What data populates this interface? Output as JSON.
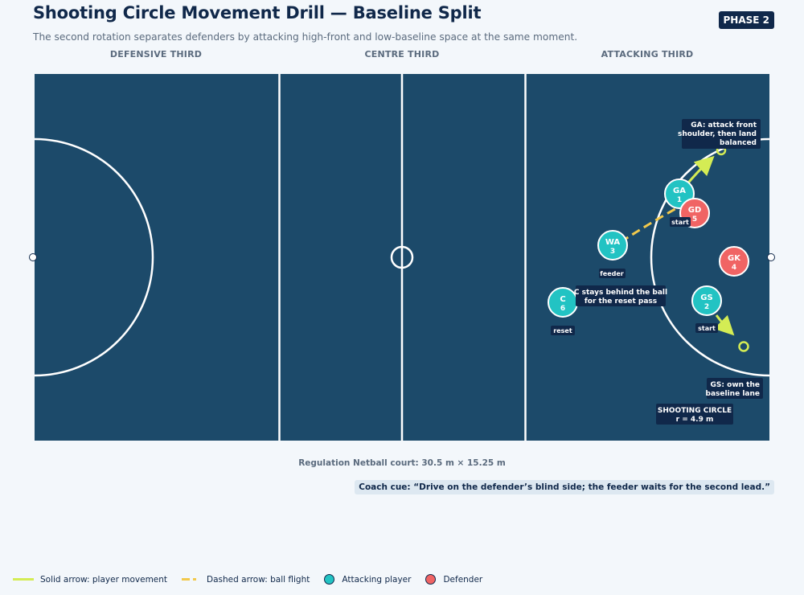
{
  "header": {
    "title": "Shooting Circle Movement Drill — Baseline Split",
    "subtitle": "The second rotation separates defenders by attacking high-front and low-baseline space at the same moment.",
    "phase_badge": "PHASE 2"
  },
  "zones": {
    "defensive": "DEFENSIVE THIRD",
    "centre": "CENTRE THIRD",
    "attacking": "ATTACKING THIRD"
  },
  "court": {
    "surface_color": "#1c4a6a",
    "line_color": "#ffffff",
    "circle_label": "SHOOTING CIRCLE",
    "circle_radius": "r = 4.9 m",
    "footnote": "Regulation Netball court: 30.5 m × 15.25 m"
  },
  "players": [
    {
      "pos": "GA",
      "num": "1",
      "team": "attack",
      "tag": "start"
    },
    {
      "pos": "GD",
      "num": "5",
      "team": "defence",
      "tag": ""
    },
    {
      "pos": "WA",
      "num": "3",
      "team": "attack",
      "tag": "feeder"
    },
    {
      "pos": "GK",
      "num": "4",
      "team": "defence",
      "tag": ""
    },
    {
      "pos": "C",
      "num": "6",
      "team": "attack",
      "tag": "reset"
    },
    {
      "pos": "GS",
      "num": "2",
      "team": "attack",
      "tag": "start"
    }
  ],
  "annotations": {
    "ga_note": [
      "GA: attack front",
      "shoulder, then land",
      "balanced"
    ],
    "c_note": [
      "C stays behind the ball",
      "for the reset pass"
    ],
    "gs_note": [
      "GS: own the",
      "baseline lane"
    ]
  },
  "coach_cue": "Coach cue: “Drive on the defender’s blind side; the feeder waits for the second lead.”",
  "legend": {
    "movement": "Solid arrow: player movement",
    "ball": "Dashed arrow: ball flight",
    "attack": "Attacking player",
    "defence": "Defender"
  },
  "colors": {
    "attack": "#22c3c3",
    "defence": "#f06464",
    "movement": "#d4ec54",
    "ball": "#f2c94c",
    "label_bg": "#10284a"
  }
}
